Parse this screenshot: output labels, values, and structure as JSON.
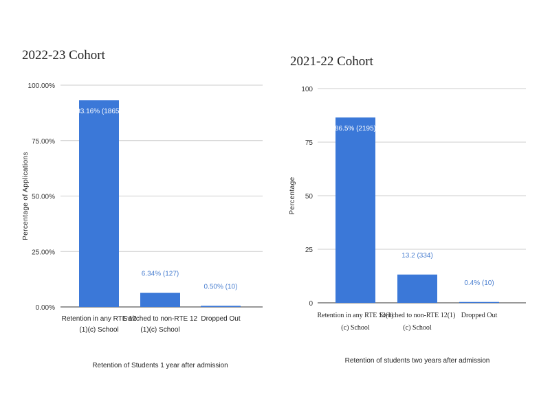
{
  "chart_data": [
    {
      "type": "bar",
      "title": "2022-23 Cohort",
      "xlabel": "Retention of Students 1 year after admission",
      "ylabel": "Percentage of Applications",
      "categories": [
        [
          "Retention in any RTE 12",
          "(1)(c) School"
        ],
        [
          "Switched to non-RTE 12",
          "(1)(c) School"
        ],
        [
          "Dropped Out"
        ]
      ],
      "values": [
        93.16,
        6.34,
        0.5
      ],
      "data_labels": [
        "93.16% (1865)",
        "6.34% (127)",
        "0.50% (10)"
      ],
      "ylim": [
        0,
        100
      ],
      "yticks": [
        0,
        25,
        50,
        75,
        100
      ],
      "ytick_labels": [
        "0.00%",
        "25.00%",
        "50.00%",
        "75.00%",
        "100.00%"
      ],
      "grid": true,
      "bar_color": "#3b78d8"
    },
    {
      "type": "bar",
      "title": "2021-22 Cohort",
      "xlabel": "Retention of students two years after admission",
      "ylabel": "Percentage",
      "categories": [
        [
          "Retention in any RTE 12(1)",
          "(c) School"
        ],
        [
          "Switched to non-RTE 12(1)",
          "(c) School"
        ],
        [
          "Dropped Out"
        ]
      ],
      "values": [
        86.5,
        13.2,
        0.4
      ],
      "data_labels": [
        "86.5% (2195)",
        "13.2 (334)",
        "0.4% (10)"
      ],
      "ylim": [
        0,
        100
      ],
      "yticks": [
        0,
        25,
        50,
        75,
        100
      ],
      "ytick_labels": [
        "0",
        "25",
        "50",
        "75",
        "100"
      ],
      "grid": true,
      "bar_color": "#3b78d8"
    }
  ]
}
